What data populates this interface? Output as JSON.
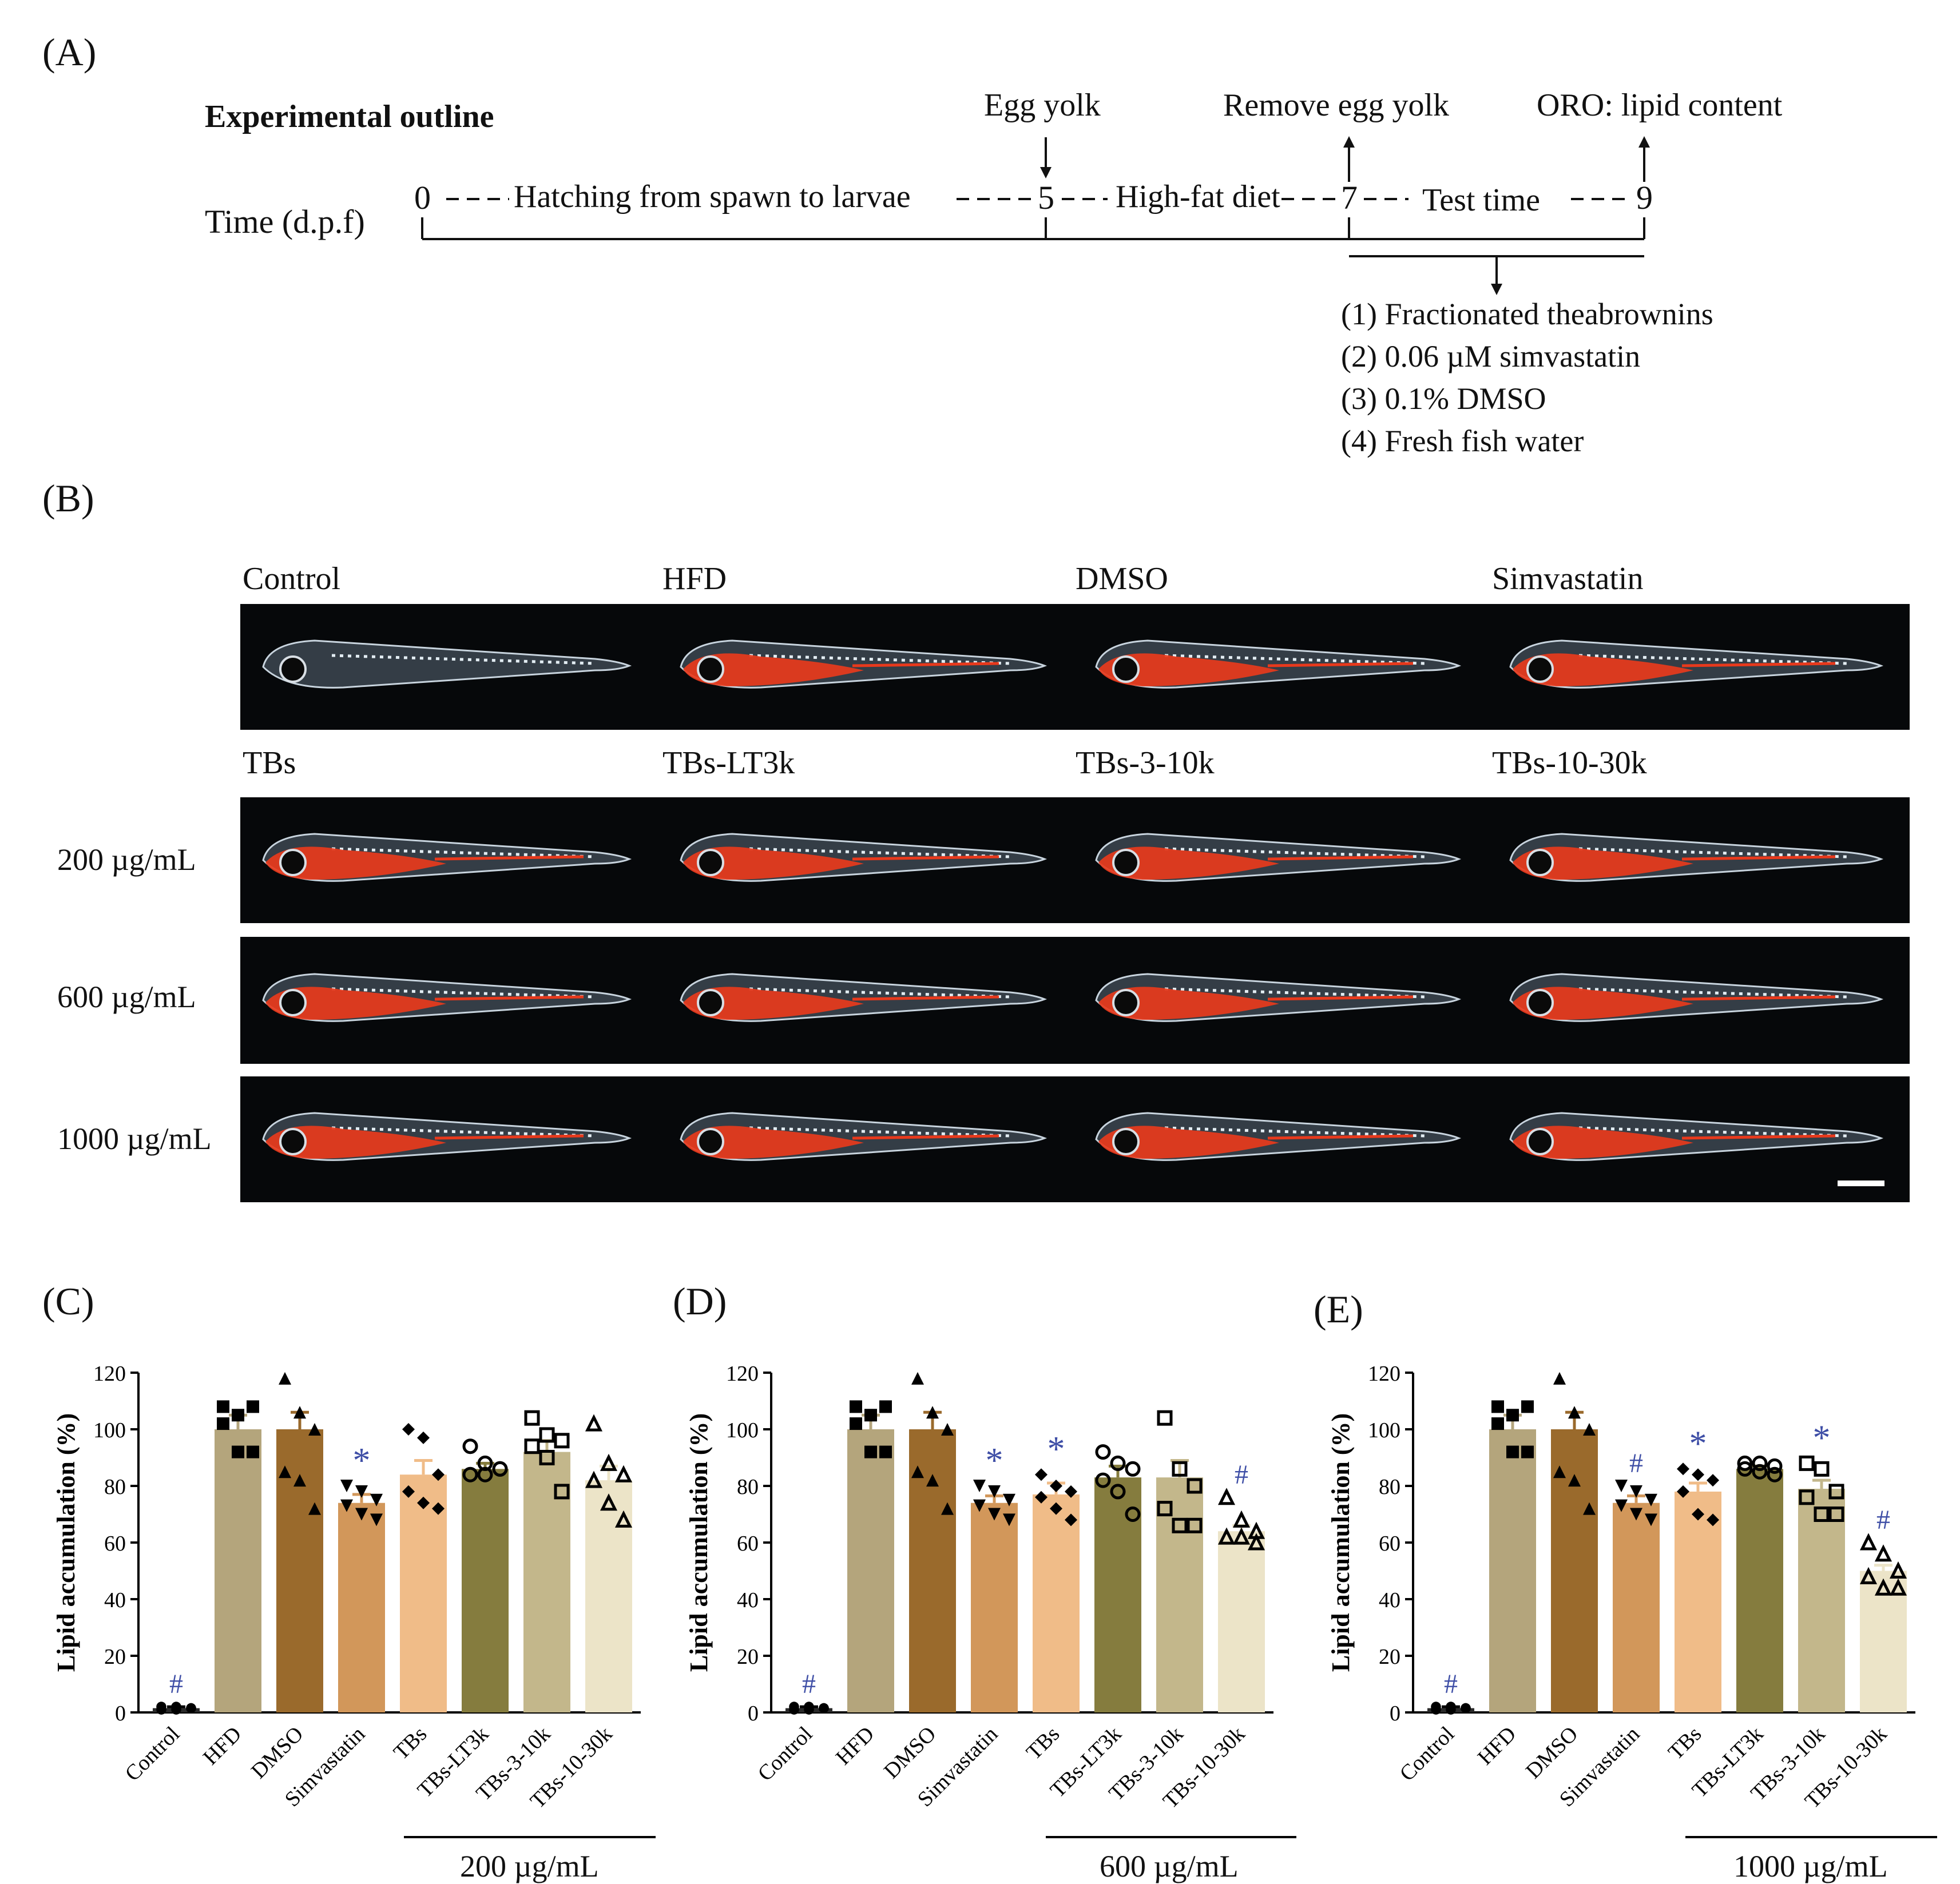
{
  "panels": {
    "a": "(A)",
    "b": "(B)",
    "c": "(C)",
    "d": "(D)",
    "e": "(E)"
  },
  "outline": {
    "title": "Experimental outline",
    "time_label": "Time (d.p.f)",
    "tick0": "0",
    "tick5": "5",
    "tick7": "7",
    "tick9": "9",
    "seg1": "Hatching from spawn to larvae",
    "seg2": "High-fat diet",
    "seg3": "Test time",
    "event_egg": "Egg yolk",
    "event_remove": "Remove egg yolk",
    "event_oro": "ORO: lipid content",
    "treatments": [
      "(1) Fractionated theabrownins",
      "(2) 0.06 µM simvastatin",
      "(3) 0.1% DMSO",
      "(4) Fresh fish water"
    ]
  },
  "images": {
    "top_labels": [
      "Control",
      "HFD",
      "DMSO",
      "Simvastatin"
    ],
    "tb_labels": [
      "TBs",
      "TBs-LT3k",
      "TBs-3-10k",
      "TBs-10-30k"
    ],
    "doses": [
      "200 µg/mL",
      "600 µg/mL",
      "1000 µg/mL"
    ]
  },
  "colors": {
    "control": "#2a2a2a",
    "hfd": "#b4a57c",
    "dmso": "#9a6a2c",
    "simvastatin": "#d2975a",
    "tbs": "#f0bc88",
    "tbs_lt3k": "#857c3e",
    "tbs_3_10k": "#c3b78b",
    "tbs_10_30k": "#ece4c8",
    "sig": "#3e4ea6",
    "lipid": "#e8391c"
  },
  "chart_data": [
    {
      "type": "bar",
      "panel": "(C)",
      "ylabel": "Lipid accumulation (%)",
      "ylim": [
        0,
        120
      ],
      "yticks": [
        0,
        20,
        40,
        60,
        80,
        100,
        120
      ],
      "categories": [
        "Control",
        "HFD",
        "DMSO",
        "Simvastatin",
        "TBs",
        "TBs-LT3k",
        "TBs-3-10k",
        "TBs-10-30k"
      ],
      "values": [
        1.5,
        100,
        100,
        74,
        84,
        86,
        92,
        82
      ],
      "errors": [
        0.5,
        5,
        6,
        3,
        5,
        2,
        4,
        5
      ],
      "significance": [
        "#",
        "",
        "",
        "*",
        "",
        "",
        "",
        ""
      ],
      "group_label": "200 µg/mL",
      "points": [
        [
          1,
          1,
          1.5,
          2,
          2,
          1.5
        ],
        [
          108,
          105,
          108,
          102,
          92,
          92
        ],
        [
          118,
          106,
          100,
          85,
          82,
          72
        ],
        [
          80,
          78,
          75,
          73,
          70,
          68
        ],
        [
          100,
          97,
          84,
          78,
          74,
          72
        ],
        [
          94,
          88,
          86,
          84,
          84,
          86
        ],
        [
          104,
          98,
          96,
          94,
          90,
          78
        ],
        [
          102,
          88,
          84,
          82,
          74,
          68
        ]
      ]
    },
    {
      "type": "bar",
      "panel": "(D)",
      "ylabel": "Lipid accumulation (%)",
      "ylim": [
        0,
        120
      ],
      "yticks": [
        0,
        20,
        40,
        60,
        80,
        100,
        120
      ],
      "categories": [
        "Control",
        "HFD",
        "DMSO",
        "Simvastatin",
        "TBs",
        "TBs-LT3k",
        "TBs-3-10k",
        "TBs-10-30k"
      ],
      "values": [
        1.5,
        100,
        100,
        74,
        77,
        83,
        83,
        64
      ],
      "errors": [
        0.5,
        5,
        6,
        2.5,
        4,
        4,
        6,
        2
      ],
      "significance": [
        "#",
        "",
        "",
        "*",
        "*",
        "",
        "",
        "#"
      ],
      "group_label": "600 µg/mL",
      "points": [
        [
          1,
          1,
          1.5,
          2,
          2,
          1.5
        ],
        [
          108,
          105,
          108,
          102,
          92,
          92
        ],
        [
          118,
          106,
          100,
          85,
          82,
          72
        ],
        [
          80,
          78,
          75,
          73,
          70,
          68
        ],
        [
          84,
          80,
          78,
          76,
          72,
          68
        ],
        [
          92,
          88,
          86,
          82,
          78,
          70
        ],
        [
          104,
          86,
          80,
          72,
          66,
          66
        ],
        [
          76,
          68,
          64,
          62,
          62,
          60
        ]
      ]
    },
    {
      "type": "bar",
      "panel": "(E)",
      "ylabel": "Lipid accumulation (%)",
      "ylim": [
        0,
        120
      ],
      "yticks": [
        0,
        20,
        40,
        60,
        80,
        100,
        120
      ],
      "categories": [
        "Control",
        "HFD",
        "DMSO",
        "Simvastatin",
        "TBs",
        "TBs-LT3k",
        "TBs-3-10k",
        "TBs-10-30k"
      ],
      "values": [
        1.5,
        100,
        100,
        74,
        78,
        86,
        79,
        50
      ],
      "errors": [
        0.5,
        5,
        6,
        2.5,
        3,
        1,
        3,
        2
      ],
      "significance": [
        "#",
        "",
        "",
        "#",
        "*",
        "",
        "*",
        "#"
      ],
      "group_label": "1000 µg/mL",
      "points": [
        [
          1,
          1,
          1.5,
          2,
          2,
          1.5
        ],
        [
          108,
          105,
          108,
          102,
          92,
          92
        ],
        [
          118,
          106,
          100,
          85,
          82,
          72
        ],
        [
          80,
          78,
          75,
          73,
          70,
          68
        ],
        [
          86,
          84,
          82,
          78,
          70,
          68
        ],
        [
          88,
          88,
          87,
          86,
          85,
          84
        ],
        [
          88,
          86,
          78,
          76,
          70,
          70
        ],
        [
          60,
          56,
          50,
          48,
          44,
          44
        ]
      ]
    }
  ]
}
